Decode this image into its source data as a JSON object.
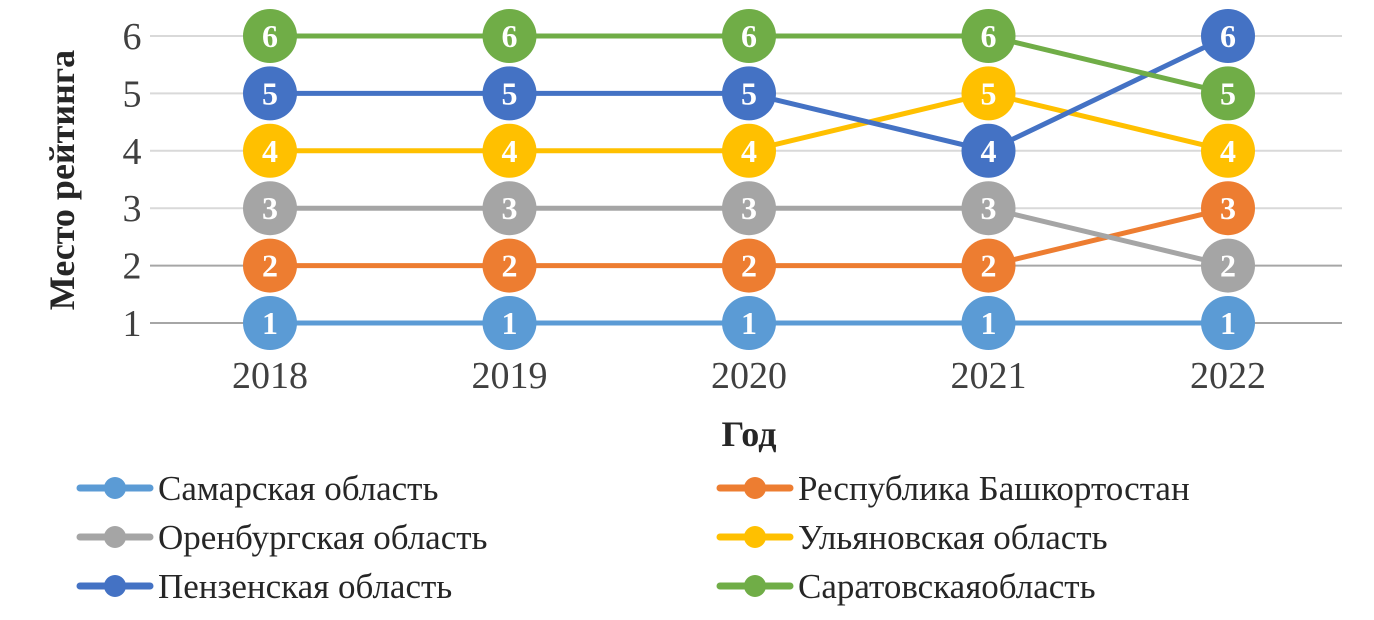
{
  "chart_data": {
    "type": "line",
    "title": "",
    "xlabel": "Год",
    "ylabel": "Место рейтинга",
    "categories": [
      "2018",
      "2019",
      "2020",
      "2021",
      "2022"
    ],
    "yticks": [
      "1",
      "2",
      "3",
      "4",
      "5",
      "6"
    ],
    "ylim": [
      1,
      6
    ],
    "grid": true,
    "legend_position": "bottom",
    "data_labels": true,
    "series": [
      {
        "name": "Самарская область",
        "color": "#5B9BD5",
        "values": [
          1,
          1,
          1,
          1,
          1
        ]
      },
      {
        "name": "Республика Башкортостан",
        "color": "#ED7D31",
        "values": [
          2,
          2,
          2,
          2,
          3
        ]
      },
      {
        "name": "Оренбургская область",
        "color": "#A5A5A5",
        "values": [
          3,
          3,
          3,
          3,
          2
        ]
      },
      {
        "name": "Ульяновская область",
        "color": "#FFC000",
        "values": [
          4,
          4,
          4,
          5,
          4
        ]
      },
      {
        "name": "Пензенская область",
        "color": "#4472C4",
        "values": [
          5,
          5,
          5,
          4,
          6
        ]
      },
      {
        "name": "Саратовскаяобласть",
        "color": "#70AD47",
        "values": [
          6,
          6,
          6,
          6,
          5
        ]
      }
    ]
  }
}
